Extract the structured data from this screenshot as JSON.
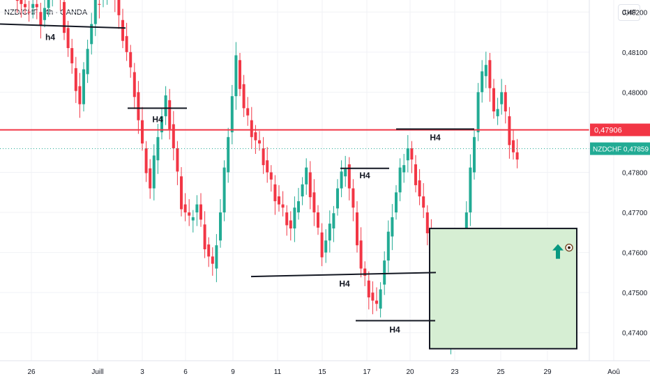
{
  "header": {
    "symbol_line": "NZD/CHF · 4h · OANDA",
    "currency": "CHF"
  },
  "colors": {
    "up": "#22ab94",
    "down": "#f23645",
    "level": "#f23645",
    "zone_fill": "#d6eed3",
    "zone_border": "#131722"
  },
  "chart_data": {
    "type": "candlestick",
    "y_ticks": [
      "0,48200",
      "0,48100",
      "0,48000",
      "0,47800",
      "0,47700",
      "0,47600",
      "0,47500",
      "0,47400"
    ],
    "x_ticks": [
      "26",
      "Juill",
      "3",
      "6",
      "9",
      "11",
      "15",
      "17",
      "20",
      "23",
      "25",
      "29",
      "Aoû"
    ],
    "ylim": [
      0.4733,
      0.4823
    ],
    "price_level": {
      "value": 0.47906,
      "label": "0,47906"
    },
    "last_price": {
      "symbol": "NZDCHF",
      "value": 0.47859,
      "label": "0,47859"
    },
    "zone": {
      "y_top": 0.4766,
      "y_bottom": 0.4736,
      "note": "demand zone with up arrow"
    },
    "annotations": [
      {
        "text": "h4",
        "price": 0.4816
      },
      {
        "text": "H4",
        "price": 0.4796
      },
      {
        "text": "H4",
        "price": 0.4796
      },
      {
        "text": "H4",
        "price": 0.479
      },
      {
        "text": "H4",
        "price": 0.4781
      },
      {
        "text": "H4",
        "price": 0.4755
      },
      {
        "text": "H4",
        "price": 0.4743
      }
    ],
    "series_trend_points": [
      0.4828,
      0.4826,
      0.4824,
      0.482,
      0.4822,
      0.4818,
      0.4824,
      0.4829,
      0.4816,
      0.4806,
      0.4797,
      0.4812,
      0.4822,
      0.4824,
      0.4828,
      0.4818,
      0.481,
      0.48,
      0.4786,
      0.4776,
      0.479,
      0.4798,
      0.4786,
      0.4772,
      0.4768,
      0.4772,
      0.4762,
      0.4756,
      0.477,
      0.479,
      0.4808,
      0.4796,
      0.479,
      0.4786,
      0.478,
      0.4774,
      0.477,
      0.4766,
      0.4774,
      0.478,
      0.477,
      0.476,
      0.4766,
      0.4776,
      0.4782,
      0.477,
      0.4756,
      0.475,
      0.4746,
      0.4758,
      0.477,
      0.478,
      0.4786,
      0.4778,
      0.477,
      0.4762,
      0.475,
      0.4738,
      0.4746,
      0.476,
      0.478,
      0.48,
      0.4808,
      0.4794,
      0.48,
      0.4788,
      0.4782
    ]
  }
}
